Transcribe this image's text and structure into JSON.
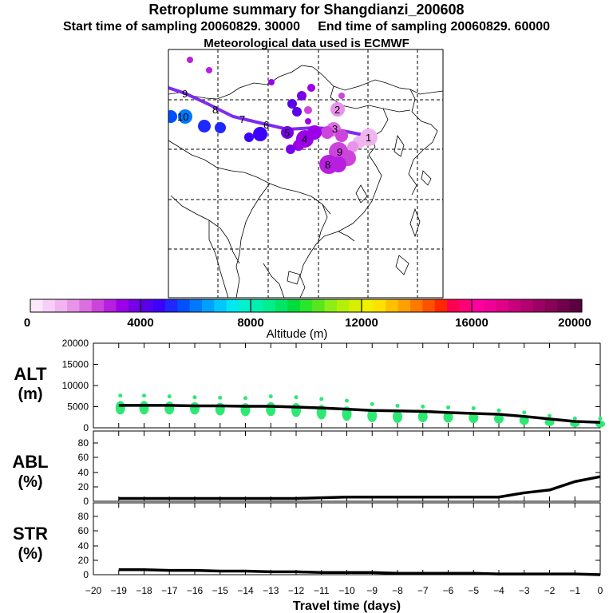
{
  "header": {
    "title": "Retroplume summary for Shangdianzi_200608",
    "start_label": "Start time of sampling 20060829. 30000",
    "end_label": "End time of sampling 20060829. 60000",
    "met_label": "Meteorological data used is ECMWF"
  },
  "colorbar": {
    "label": "Altitude (m)",
    "ticks": [
      "0",
      "4000",
      "8000",
      "12000",
      "16000",
      "20000"
    ],
    "min": 0,
    "max": 20000,
    "colors": [
      "#fbe8fb",
      "#f6cff6",
      "#f0b4f0",
      "#e693e8",
      "#dc6fe0",
      "#cc44dc",
      "#b81ee0",
      "#9c00e8",
      "#7800e8",
      "#5a00e8",
      "#3c00ff",
      "#1e28ff",
      "#0050ff",
      "#0078ff",
      "#00a0ff",
      "#00c8ff",
      "#00e8f0",
      "#00f0d0",
      "#00f0b0",
      "#00ee8c",
      "#00e664",
      "#00dc3c",
      "#28e628",
      "#5ae61e",
      "#8cee14",
      "#b4f00a",
      "#d8f000",
      "#f0f000",
      "#ffe000",
      "#ffc000",
      "#ffa000",
      "#ff7800",
      "#ff5000",
      "#ff2800",
      "#ff0050",
      "#ff0078",
      "#ff00a0",
      "#f00096",
      "#e00088",
      "#c8007c",
      "#b40070",
      "#9c0064",
      "#880058",
      "#70004c",
      "#5a0040"
    ]
  },
  "map": {
    "track_color": "#7d2cf0",
    "clusters": [
      {
        "label": "1",
        "color": "#f0b4f0"
      },
      {
        "label": "2",
        "color": "#e693e8"
      },
      {
        "label": "3",
        "color": "#dc6fe0"
      },
      {
        "label": "4",
        "color": "#9c00e8"
      },
      {
        "label": "5",
        "color": "#7800e8"
      },
      {
        "label": "6",
        "color": "#3c00ff"
      },
      {
        "label": "7",
        "color": "#1e28ff"
      },
      {
        "label": "8",
        "color": "#0050ff"
      },
      {
        "label": "9",
        "color": "#1e28ff"
      },
      {
        "label": "10",
        "color": "#0078ff"
      },
      {
        "label": "9",
        "color": "#cc44dc"
      },
      {
        "label": "8",
        "color": "#b81ee0"
      }
    ]
  },
  "chart_data": [
    {
      "type": "line",
      "panel": "ALT",
      "ylabel_line1": "ALT",
      "ylabel_line2": "(m)",
      "ylim": [
        0,
        20000
      ],
      "yticks": [
        "20000",
        "15000",
        "10000",
        "5000",
        "0"
      ],
      "x": [
        -19,
        -18,
        -17,
        -16,
        -15,
        -14,
        -13,
        -12,
        -11,
        -10,
        -9,
        -8,
        -7,
        -6,
        -5,
        -4,
        -3,
        -2,
        -1,
        0
      ],
      "values": [
        5300,
        5300,
        5300,
        5200,
        5200,
        5100,
        5100,
        4900,
        4700,
        4400,
        4100,
        4000,
        3900,
        3600,
        3400,
        3200,
        2700,
        2100,
        1500,
        1300
      ],
      "spread": [
        [
          3000,
          8000
        ],
        [
          3000,
          8000
        ],
        [
          3000,
          7800
        ],
        [
          3000,
          7600
        ],
        [
          2800,
          7500
        ],
        [
          2600,
          7400
        ],
        [
          2600,
          7800
        ],
        [
          2400,
          7600
        ],
        [
          1800,
          7200
        ],
        [
          1500,
          6800
        ],
        [
          1200,
          6000
        ],
        [
          1000,
          5600
        ],
        [
          1200,
          5400
        ],
        [
          1100,
          5200
        ],
        [
          1000,
          5000
        ],
        [
          900,
          4500
        ],
        [
          600,
          4000
        ],
        [
          300,
          3200
        ],
        [
          100,
          2600
        ],
        [
          0,
          2600
        ]
      ],
      "spread_color": "#2ee874"
    },
    {
      "type": "line",
      "panel": "ABL",
      "ylabel_line1": "ABL",
      "ylabel_line2": "(%)",
      "ylim": [
        0,
        100
      ],
      "yticks": [
        "80",
        "60",
        "40",
        "20",
        "0"
      ],
      "x": [
        -19,
        -18,
        -17,
        -16,
        -15,
        -14,
        -13,
        -12,
        -11,
        -10,
        -9,
        -8,
        -7,
        -6,
        -5,
        -4,
        -3,
        -2,
        -1,
        0
      ],
      "values": [
        4,
        4,
        4,
        4,
        4,
        4,
        4,
        4,
        5,
        6,
        6,
        6,
        6,
        6,
        6,
        6,
        12,
        16,
        28,
        35
      ]
    },
    {
      "type": "line",
      "panel": "STR",
      "ylabel_line1": "STR",
      "ylabel_line2": "(%)",
      "ylim": [
        0,
        100
      ],
      "yticks": [
        "80",
        "60",
        "40",
        "20",
        "0"
      ],
      "x": [
        -19,
        -18,
        -17,
        -16,
        -15,
        -14,
        -13,
        -12,
        -11,
        -10,
        -9,
        -8,
        -7,
        -6,
        -5,
        -4,
        -3,
        -2,
        -1,
        0
      ],
      "values": [
        7,
        7,
        6,
        6,
        5,
        5,
        4,
        4,
        3,
        3,
        3,
        2,
        2,
        2,
        2,
        1,
        1,
        1,
        1,
        0
      ],
      "xlabel": "Travel time (days)",
      "xticks": [
        "-20",
        "-19",
        "-18",
        "-17",
        "-16",
        "-15",
        "-14",
        "-13",
        "-12",
        "-11",
        "-10",
        "-9",
        "-8",
        "-7",
        "-6",
        "-5",
        "-4",
        "-3",
        "-2",
        "-1",
        "0"
      ]
    }
  ]
}
